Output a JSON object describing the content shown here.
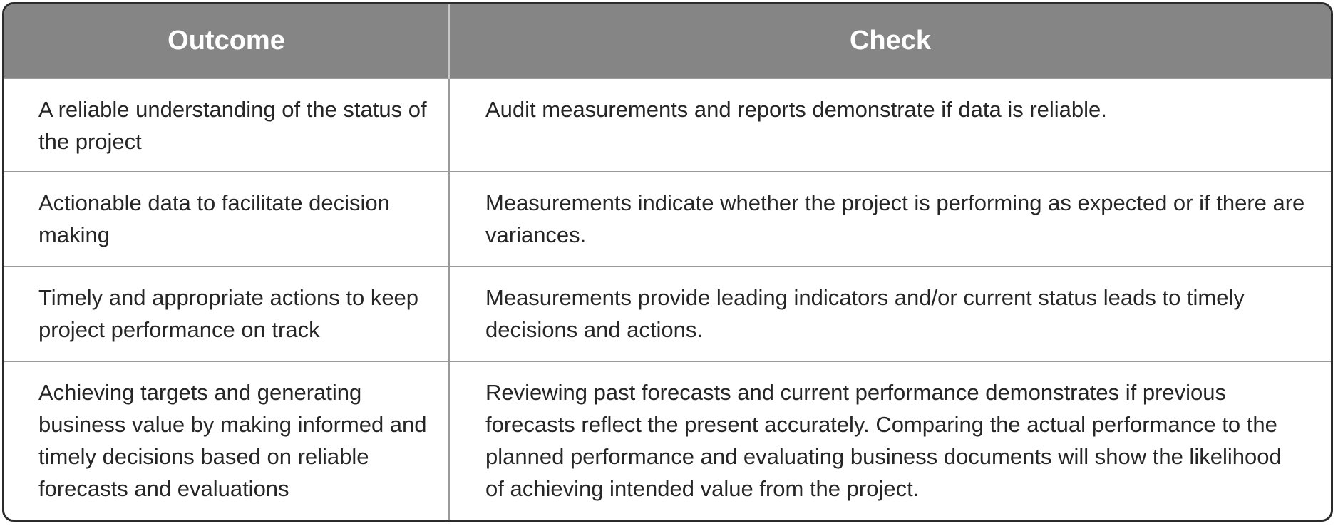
{
  "table": {
    "headers": {
      "outcome": "Outcome",
      "check": "Check"
    },
    "rows": [
      {
        "outcome": "A reliable understanding of the status of the project",
        "check": "Audit measurements and reports demonstrate if data is reliable."
      },
      {
        "outcome": "Actionable data to facilitate decision making",
        "check": "Measurements indicate whether the project is performing as expected or if there are variances."
      },
      {
        "outcome": "Timely and appropriate actions to keep project performance on track",
        "check": "Measurements provide leading indicators and/or current status leads to timely decisions and actions."
      },
      {
        "outcome": "Achieving targets and generating business value by making informed and timely decisions based on reliable forecasts and evaluations",
        "check": "Reviewing past forecasts and current performance demonstrates if previous forecasts reflect the present accurately. Comparing the actual performance to the planned performance and evaluating business documents will show the likelihood of achieving intended value from the project."
      }
    ]
  },
  "colors": {
    "header_background": "#858585",
    "header_text": "#ffffff",
    "body_text": "#262626",
    "frame_border": "#2b2b2b",
    "grid_lines": "#9a9a9a"
  }
}
